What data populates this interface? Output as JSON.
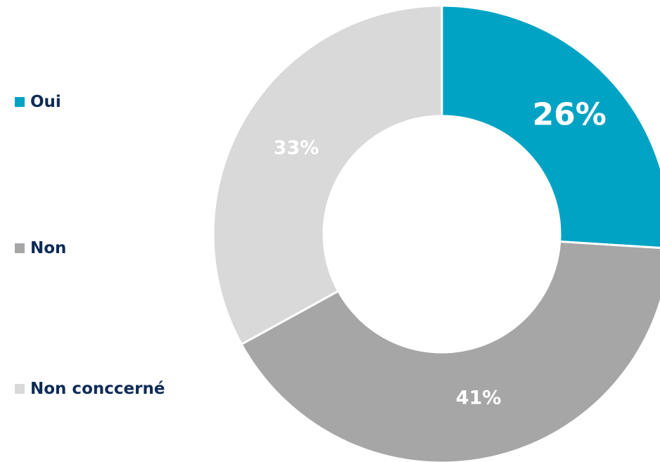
{
  "chart_data": {
    "type": "pie",
    "variant": "donut",
    "categories": [
      "Oui",
      "Non",
      "Non conccerné"
    ],
    "values": [
      26,
      41,
      33
    ],
    "value_labels": [
      "26%",
      "41%",
      "33%"
    ],
    "colors": [
      "#00a3c4",
      "#a6a6a6",
      "#d9d9d9"
    ],
    "legend_placement": "left",
    "start_angle": "12 o'clock",
    "direction": "clockwise"
  }
}
